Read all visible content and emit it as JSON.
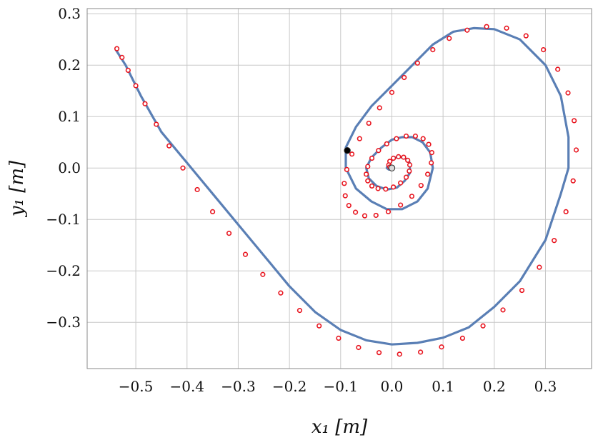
{
  "chart_data": {
    "type": "scatter",
    "xlabel": "x₁ [m]",
    "ylabel": "y₁ [m]",
    "xlim": [
      -0.595,
      0.39
    ],
    "ylim": [
      -0.39,
      0.31
    ],
    "grid": true,
    "x_ticks": [
      -0.5,
      -0.4,
      -0.3,
      -0.2,
      -0.1,
      0.0,
      0.1,
      0.2,
      0.3
    ],
    "y_ticks": [
      -0.3,
      -0.2,
      -0.1,
      0.0,
      0.1,
      0.2,
      0.3
    ],
    "x_tick_labels": [
      "−0.5",
      "−0.4",
      "−0.3",
      "−0.2",
      "−0.1",
      "0.0",
      "0.1",
      "0.2",
      "0.3"
    ],
    "y_tick_labels": [
      "−0.3",
      "−0.2",
      "−0.1",
      "0.0",
      "0.1",
      "0.2",
      "0.3"
    ],
    "series": [
      {
        "style": "line",
        "color": "#5a7fb5",
        "x": [
          -0.539,
          -0.52,
          -0.49,
          -0.45,
          -0.4,
          -0.35,
          -0.3,
          -0.25,
          -0.2,
          -0.15,
          -0.1,
          -0.05,
          0.0,
          0.05,
          0.1,
          0.15,
          0.2,
          0.25,
          0.3,
          0.33,
          0.345,
          0.345,
          0.33,
          0.3,
          0.25,
          0.2,
          0.16,
          0.12,
          0.08,
          0.04,
          0.0,
          -0.04,
          -0.07,
          -0.09,
          -0.09,
          -0.07,
          -0.04,
          -0.01,
          0.02,
          0.05,
          0.07,
          0.08,
          0.075,
          0.06,
          0.04,
          0.02,
          0.0,
          -0.02,
          -0.04,
          -0.05,
          -0.045,
          -0.03,
          -0.01,
          0.01,
          0.025,
          0.035,
          0.035,
          0.025,
          0.01,
          0.0,
          -0.008,
          -0.01,
          -0.006,
          0.0
        ],
        "y": [
          0.23,
          0.2,
          0.14,
          0.07,
          0.01,
          -0.05,
          -0.11,
          -0.17,
          -0.23,
          -0.28,
          -0.315,
          -0.335,
          -0.343,
          -0.34,
          -0.33,
          -0.31,
          -0.27,
          -0.22,
          -0.14,
          -0.05,
          0.0,
          0.06,
          0.14,
          0.2,
          0.25,
          0.27,
          0.272,
          0.265,
          0.24,
          0.2,
          0.16,
          0.12,
          0.08,
          0.04,
          0.0,
          -0.04,
          -0.065,
          -0.08,
          -0.08,
          -0.065,
          -0.04,
          0.0,
          0.03,
          0.05,
          0.06,
          0.06,
          0.055,
          0.04,
          0.02,
          0.0,
          -0.02,
          -0.035,
          -0.042,
          -0.038,
          -0.025,
          -0.01,
          0.01,
          0.02,
          0.022,
          0.015,
          0.005,
          0.0,
          -0.003,
          0.0
        ]
      },
      {
        "style": "markers",
        "color": "#e8141e",
        "x": [
          -0.537,
          -0.527,
          -0.515,
          -0.5,
          -0.482,
          -0.46,
          -0.435,
          -0.408,
          -0.38,
          -0.35,
          -0.318,
          -0.286,
          -0.252,
          -0.217,
          -0.18,
          -0.142,
          -0.104,
          -0.065,
          -0.025,
          0.015,
          0.056,
          0.097,
          0.138,
          0.178,
          0.217,
          0.254,
          0.288,
          0.317,
          0.34,
          0.354,
          0.36,
          0.356,
          0.344,
          0.324,
          0.296,
          0.262,
          0.224,
          0.185,
          0.147,
          0.112,
          0.08,
          0.05,
          0.024,
          0.0,
          -0.024,
          -0.045,
          -0.063,
          -0.078,
          -0.088,
          -0.093,
          -0.091,
          -0.084,
          -0.071,
          -0.053,
          -0.031,
          -0.007,
          0.017,
          0.039,
          0.057,
          0.07,
          0.077,
          0.078,
          0.072,
          0.061,
          0.046,
          0.028,
          0.009,
          -0.01,
          -0.026,
          -0.039,
          -0.047,
          -0.05,
          -0.047,
          -0.039,
          -0.027,
          -0.012,
          0.003,
          0.017,
          0.028,
          0.034,
          0.035,
          0.031,
          0.023,
          0.013,
          0.003,
          -0.004,
          -0.006,
          -0.004,
          0.0
        ],
        "y": [
          0.232,
          0.215,
          0.19,
          0.16,
          0.125,
          0.085,
          0.043,
          0.0,
          -0.042,
          -0.085,
          -0.127,
          -0.168,
          -0.207,
          -0.243,
          -0.277,
          -0.307,
          -0.331,
          -0.349,
          -0.359,
          -0.362,
          -0.358,
          -0.348,
          -0.331,
          -0.307,
          -0.276,
          -0.238,
          -0.193,
          -0.141,
          -0.085,
          -0.025,
          0.035,
          0.092,
          0.146,
          0.192,
          0.23,
          0.257,
          0.272,
          0.275,
          0.268,
          0.252,
          0.23,
          0.204,
          0.176,
          0.147,
          0.117,
          0.087,
          0.057,
          0.027,
          -0.003,
          -0.03,
          -0.054,
          -0.073,
          -0.086,
          -0.093,
          -0.092,
          -0.085,
          -0.072,
          -0.055,
          -0.034,
          -0.012,
          0.01,
          0.03,
          0.046,
          0.057,
          0.062,
          0.062,
          0.057,
          0.047,
          0.034,
          0.019,
          0.003,
          -0.012,
          -0.025,
          -0.035,
          -0.04,
          -0.041,
          -0.037,
          -0.029,
          -0.018,
          -0.006,
          0.006,
          0.015,
          0.021,
          0.022,
          0.019,
          0.013,
          0.006,
          0.002,
          0.0
        ]
      }
    ],
    "special_points": [
      {
        "x": -0.087,
        "y": 0.034,
        "fill": "#000000"
      },
      {
        "x": 0.0,
        "y": 0.0,
        "fill": "#d8d8d8"
      }
    ]
  }
}
